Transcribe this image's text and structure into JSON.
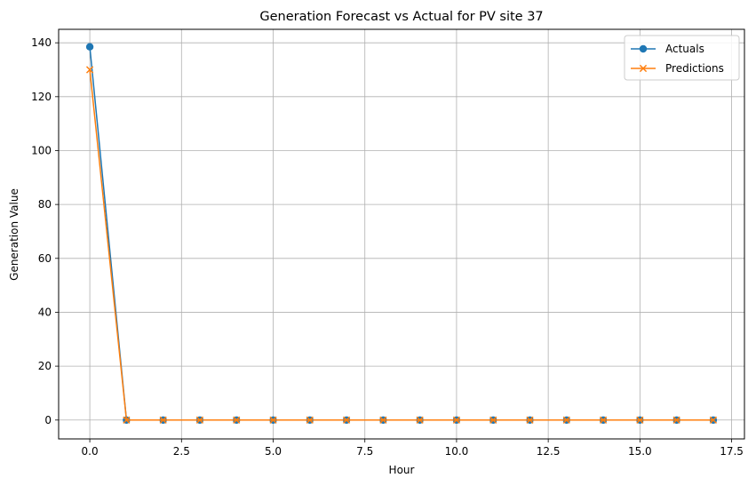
{
  "chart_data": {
    "type": "line",
    "title": "Generation Forecast vs Actual for PV site 37",
    "xlabel": "Hour",
    "ylabel": "Generation Value",
    "xlim": [
      -0.85,
      17.85
    ],
    "ylim": [
      -7,
      145
    ],
    "xticks": [
      0,
      2.5,
      5,
      7.5,
      10,
      12.5,
      15,
      17.5
    ],
    "xtick_labels": [
      "0.0",
      "2.5",
      "5.0",
      "7.5",
      "10.0",
      "12.5",
      "15.0",
      "17.5"
    ],
    "yticks": [
      0,
      20,
      40,
      60,
      80,
      100,
      120,
      140
    ],
    "ytick_labels": [
      "0",
      "20",
      "40",
      "60",
      "80",
      "100",
      "120",
      "140"
    ],
    "grid": true,
    "legend_position": "top-right",
    "x": [
      0,
      1,
      2,
      3,
      4,
      5,
      6,
      7,
      8,
      9,
      10,
      11,
      12,
      13,
      14,
      15,
      16,
      17
    ],
    "series": [
      {
        "name": "Actuals",
        "color": "#1f77b4",
        "marker": "circle",
        "values": [
          138.5,
          0,
          0,
          0,
          0,
          0,
          0,
          0,
          0,
          0,
          0,
          0,
          0,
          0,
          0,
          0,
          0,
          0
        ]
      },
      {
        "name": "Predictions",
        "color": "#ff7f0e",
        "marker": "x",
        "values": [
          130,
          0,
          0,
          0,
          0,
          0,
          0,
          0,
          0,
          0,
          0,
          0,
          0,
          0,
          0,
          0,
          0,
          0
        ]
      }
    ]
  }
}
